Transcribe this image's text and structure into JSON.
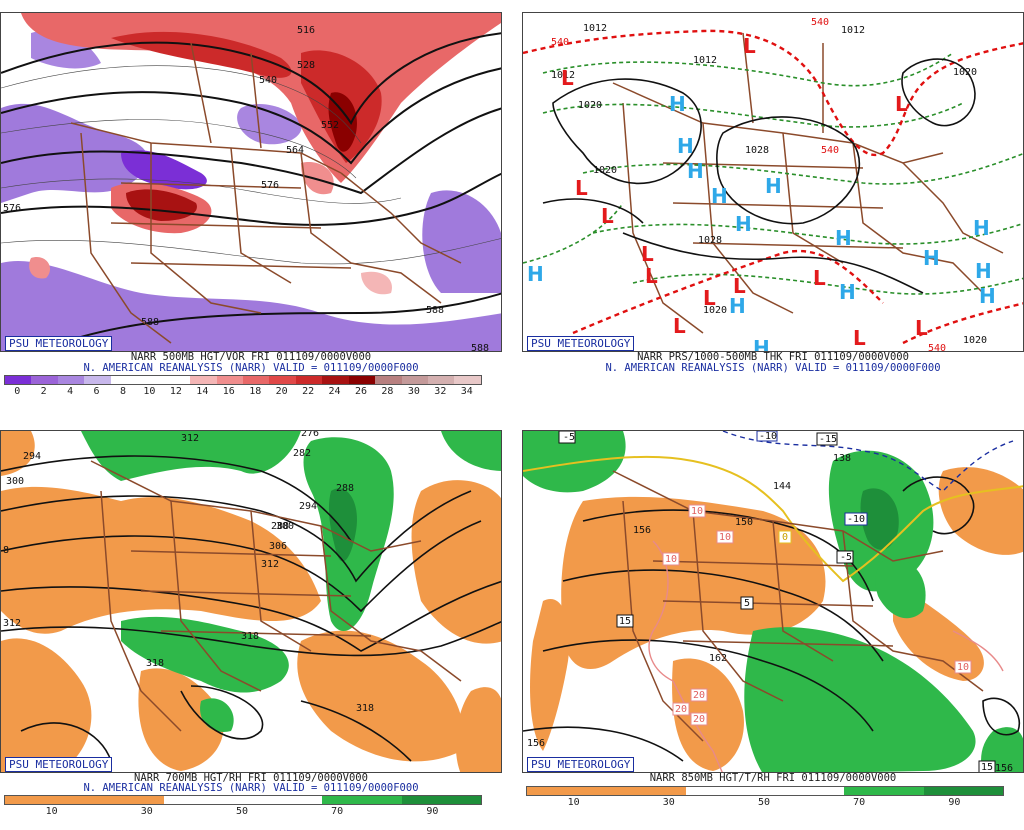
{
  "badge": "PSU METEOROLOGY",
  "panels": [
    {
      "line1": "NARR 500MB HGT/VOR FRI 011109/0000V000",
      "line2": "N. AMERICAN REANALYSIS (NARR) VALID = 011109/0000F000",
      "scale": [
        "0",
        "2",
        "4",
        "6",
        "8",
        "10",
        "12",
        "14",
        "16",
        "18",
        "20",
        "22",
        "24",
        "26",
        "28",
        "30",
        "32",
        "34"
      ],
      "labels": [
        "516",
        "528",
        "540",
        "552",
        "564",
        "576",
        "576",
        "588",
        "588",
        "588"
      ]
    },
    {
      "line1": "NARR PRS/1000-500MB THK FRI 011109/0000V000",
      "line2": "N. AMERICAN REANALYSIS (NARR) VALID = 011109/0000F000",
      "labels": [
        "540",
        "1012",
        "1012",
        "1012",
        "1020",
        "1020",
        "1020",
        "1028",
        "1028",
        "1020",
        "1012",
        "1020",
        "540",
        "540",
        "540"
      ],
      "low_symbol": "L",
      "high_symbol": "H"
    },
    {
      "line1": "NARR 700MB HGT/RH FRI 011109/0000V000",
      "line2": "N. AMERICAN REANALYSIS (NARR) VALID = 011109/0000F000",
      "scale": [
        "10",
        "30",
        "50",
        "70",
        "90"
      ],
      "labels": [
        "288",
        "276",
        "282",
        "294",
        "300",
        "294",
        "288",
        "300",
        "306",
        "312",
        "312",
        "318",
        "318",
        "318",
        "8",
        "312"
      ]
    },
    {
      "line1": "NARR 850MB HGT/T/RH FRI 011109/0000V000",
      "scale": [
        "10",
        "30",
        "50",
        "70",
        "90"
      ],
      "labels": [
        "138",
        "144",
        "150",
        "156",
        "156",
        "162",
        "156"
      ],
      "temp_labels": [
        "-5",
        "-10",
        "-15",
        "-10",
        "-5",
        "5",
        "10",
        "10",
        "10",
        "15",
        "20",
        "20",
        "20",
        "0",
        "10",
        "15"
      ]
    }
  ],
  "colors": {
    "vort": [
      "#7b2fd6",
      "#9b64d8",
      "#a986e0",
      "#c8b8ec",
      "#ffffff",
      "#ffffff",
      "#ffffff",
      "#f4b6b6",
      "#f08e8e",
      "#e86868",
      "#e04848",
      "#cc2a2a",
      "#a81212",
      "#8a0000",
      "#b88080",
      "#c49a9a",
      "#d4b0b0",
      "#e8c8c8"
    ],
    "rh": [
      "#f29a4a",
      "#f29a4a",
      "#ffffff",
      "#ffffff",
      "#2fb84a",
      "#1e8f3a"
    ],
    "brown": "#8b4a2b",
    "green_dash": "#2a8f2a",
    "red_dash": "#e01010",
    "blue": "#1a2ea0"
  }
}
